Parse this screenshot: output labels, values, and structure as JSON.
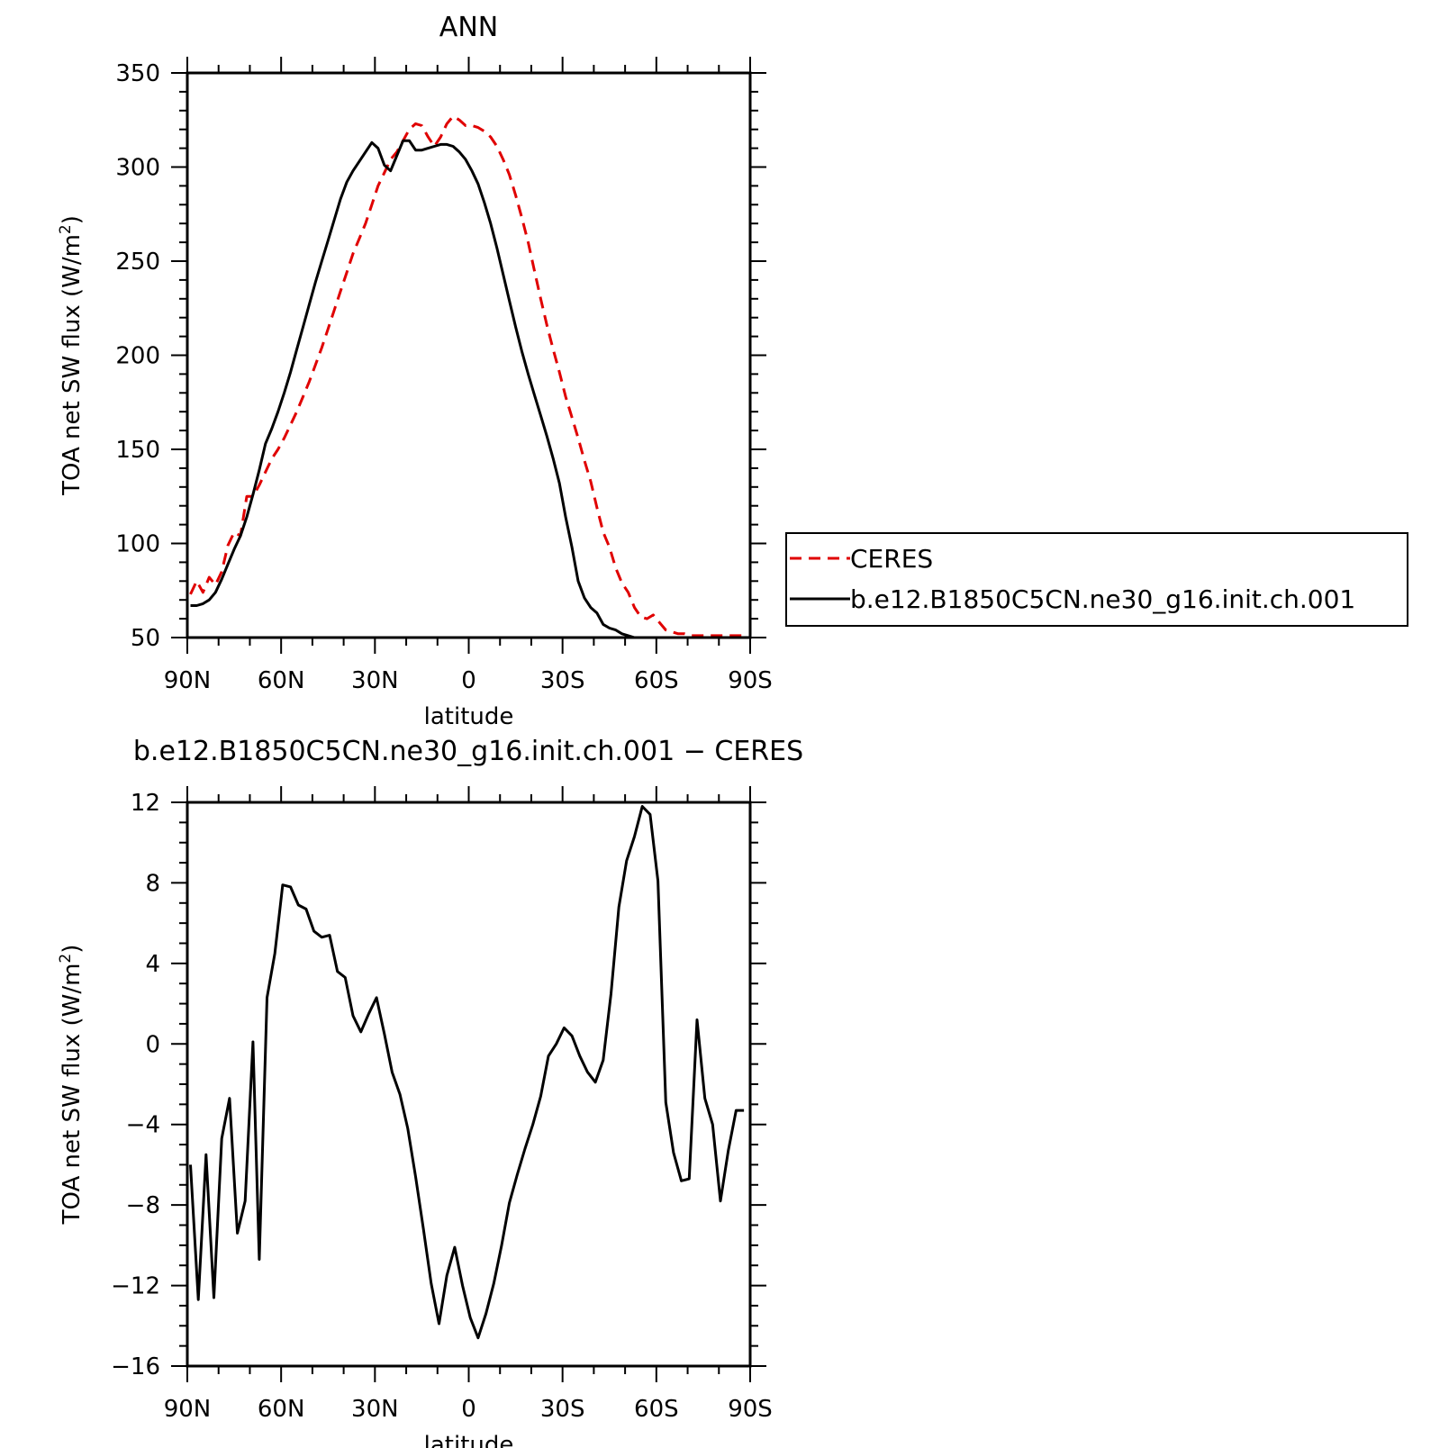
{
  "chart_data": [
    {
      "type": "line",
      "title": "ANN",
      "xlabel": "latitude",
      "ylabel_main": "TOA net SW flux (W/m",
      "ylabel_sup": "2",
      "ylabel_tail": ")",
      "xlim": [
        90,
        -90
      ],
      "ylim": [
        50,
        350
      ],
      "yticks": [
        350,
        300,
        250,
        200,
        150,
        100,
        50
      ],
      "xticks": [
        {
          "value": 90,
          "label": "90N"
        },
        {
          "value": 60,
          "label": "60N"
        },
        {
          "value": 30,
          "label": "30N"
        },
        {
          "value": 0,
          "label": "0"
        },
        {
          "value": -30,
          "label": "30S"
        },
        {
          "value": -60,
          "label": "60S"
        },
        {
          "value": -90,
          "label": "90S"
        }
      ],
      "legend": {
        "position": "right"
      },
      "series": [
        {
          "name": "CERES",
          "color": "#e00000",
          "dash": "dashed",
          "x": [
            89,
            87,
            85,
            83,
            81,
            79,
            77,
            75,
            73,
            71,
            69,
            67,
            65,
            63,
            61,
            59,
            57,
            55,
            53,
            51,
            49,
            47,
            45,
            43,
            41,
            39,
            37,
            35,
            33,
            31,
            29,
            27,
            25,
            23,
            21,
            19,
            17,
            15,
            13,
            11,
            9,
            7,
            5,
            3,
            1,
            -1,
            -3,
            -5,
            -7,
            -9,
            -11,
            -13,
            -15,
            -17,
            -19,
            -21,
            -23,
            -25,
            -27,
            -29,
            -31,
            -33,
            -35,
            -37,
            -39,
            -41,
            -43,
            -45,
            -47,
            -49,
            -51,
            -53,
            -55,
            -57,
            -59,
            -61,
            -63,
            -65,
            -67,
            -69,
            -71,
            -73,
            -75,
            -77,
            -79,
            -81,
            -83,
            -85,
            -87,
            -89
          ],
          "y": [
            73,
            80,
            74,
            82,
            78,
            85,
            99,
            106,
            104,
            125,
            125,
            131,
            138,
            145,
            150,
            156,
            163,
            170,
            178,
            186,
            195,
            204,
            214,
            224,
            234,
            244,
            254,
            262,
            270,
            280,
            290,
            297,
            304,
            308,
            314,
            320,
            323,
            322,
            316,
            311,
            316,
            323,
            327,
            325,
            322,
            322,
            321,
            319,
            316,
            311,
            304,
            296,
            285,
            273,
            260,
            245,
            230,
            216,
            203,
            191,
            178,
            167,
            156,
            144,
            133,
            119,
            106,
            98,
            87,
            79,
            74,
            66,
            61,
            60,
            62,
            58,
            54,
            53,
            52,
            52,
            51,
            51,
            51,
            51,
            51,
            51,
            51,
            51,
            51,
            51
          ]
        },
        {
          "name": "b.e12.B1850C5CN.ne30_g16.init.ch.001",
          "color": "#000000",
          "dash": "solid",
          "x": [
            89,
            87,
            85,
            83,
            81,
            79,
            77,
            75,
            73,
            71,
            69,
            67,
            65,
            63,
            61,
            59,
            57,
            55,
            53,
            51,
            49,
            47,
            45,
            43,
            41,
            39,
            37,
            35,
            33,
            31,
            29,
            27,
            25,
            23,
            21,
            19,
            17,
            15,
            13,
            11,
            9,
            7,
            5,
            3,
            1,
            -1,
            -3,
            -5,
            -7,
            -9,
            -11,
            -13,
            -15,
            -17,
            -19,
            -21,
            -23,
            -25,
            -27,
            -29,
            -31,
            -33,
            -35,
            -37,
            -39,
            -41,
            -43,
            -45,
            -47,
            -49,
            -51,
            -53,
            -55,
            -57,
            -59,
            -61,
            -63,
            -65,
            -67,
            -69,
            -71,
            -73,
            -75,
            -77,
            -79,
            -81,
            -83,
            -85,
            -87,
            -89
          ],
          "y": [
            67,
            67,
            68,
            70,
            74,
            81,
            89,
            97,
            104,
            114,
            126,
            139,
            153,
            161,
            170,
            180,
            191,
            203,
            215,
            227,
            239,
            250,
            261,
            272,
            283,
            292,
            298,
            303,
            308,
            313,
            310,
            301,
            298,
            306,
            314,
            314,
            309,
            309,
            310,
            311,
            312,
            312,
            311,
            308,
            304,
            298,
            291,
            281,
            270,
            257,
            243,
            229,
            215,
            202,
            190,
            179,
            168,
            157,
            145,
            132,
            114,
            98,
            80,
            71,
            66,
            63,
            57,
            55,
            54,
            52,
            51,
            50,
            50,
            50,
            50,
            50,
            50,
            50,
            50,
            50,
            50,
            50,
            50,
            50,
            50,
            50,
            50,
            50,
            50,
            50
          ]
        }
      ]
    },
    {
      "type": "line",
      "title": "b.e12.B1850C5CN.ne30_g16.init.ch.001 − CERES",
      "xlabel": "latitude",
      "ylabel_main": "TOA net SW flux (W/m",
      "ylabel_sup": "2",
      "ylabel_tail": ")",
      "xlim": [
        90,
        -90
      ],
      "ylim": [
        -16,
        12
      ],
      "yticks": [
        12,
        8,
        4,
        0,
        -4,
        -8,
        -12,
        -16
      ],
      "ytick_labels": [
        "12",
        "8",
        "4",
        "0",
        "−4",
        "−8",
        "−12",
        "−16"
      ],
      "xticks": [
        {
          "value": 90,
          "label": "90N"
        },
        {
          "value": 60,
          "label": "60N"
        },
        {
          "value": 30,
          "label": "30N"
        },
        {
          "value": 0,
          "label": "0"
        },
        {
          "value": -30,
          "label": "30S"
        },
        {
          "value": -60,
          "label": "60S"
        },
        {
          "value": -90,
          "label": "90S"
        }
      ],
      "series": [
        {
          "color": "#000000",
          "dash": "solid",
          "x": [
            89,
            86.5,
            84,
            81.5,
            79,
            76.5,
            74,
            71.5,
            69,
            67,
            64.5,
            62,
            59.5,
            57,
            54.5,
            52,
            49.5,
            47,
            44.5,
            42,
            39.5,
            37,
            34.5,
            32,
            29.5,
            27,
            24.5,
            22,
            19.5,
            17,
            14.5,
            12,
            9.5,
            7,
            4.5,
            2,
            -0.5,
            -3,
            -5.5,
            -8,
            -10.5,
            -13,
            -15.5,
            -18,
            -20.5,
            -23,
            -25.5,
            -28,
            -30.5,
            -33,
            -35.5,
            -38,
            -40.5,
            -43,
            -45.5,
            -48,
            -50.5,
            -53,
            -55.5,
            -58,
            -60.5,
            -63,
            -65.5,
            -68,
            -70.5,
            -73,
            -75.5,
            -78,
            -80.5,
            -83,
            -85.5,
            -88
          ],
          "y": [
            -6.0,
            -12.7,
            -5.5,
            -12.6,
            -4.7,
            -2.7,
            -9.4,
            -7.8,
            0.1,
            -10.7,
            2.3,
            4.5,
            7.9,
            7.8,
            6.9,
            6.7,
            5.6,
            5.3,
            5.4,
            3.6,
            3.3,
            1.4,
            0.6,
            1.5,
            2.3,
            0.5,
            -1.4,
            -2.5,
            -4.2,
            -6.6,
            -9.2,
            -11.9,
            -13.9,
            -11.5,
            -10.1,
            -12.0,
            -13.6,
            -14.6,
            -13.4,
            -11.9,
            -10.0,
            -7.9,
            -6.5,
            -5.2,
            -4.0,
            -2.6,
            -0.6,
            0.0,
            0.8,
            0.4,
            -0.6,
            -1.4,
            -1.9,
            -0.8,
            2.5,
            6.8,
            9.1,
            10.3,
            11.8,
            11.4,
            8.1,
            -2.9,
            -5.4,
            -6.8,
            -6.7,
            1.2,
            -2.7,
            -4.0,
            -7.8,
            -5.3,
            -3.3,
            -3.3
          ]
        }
      ]
    }
  ]
}
